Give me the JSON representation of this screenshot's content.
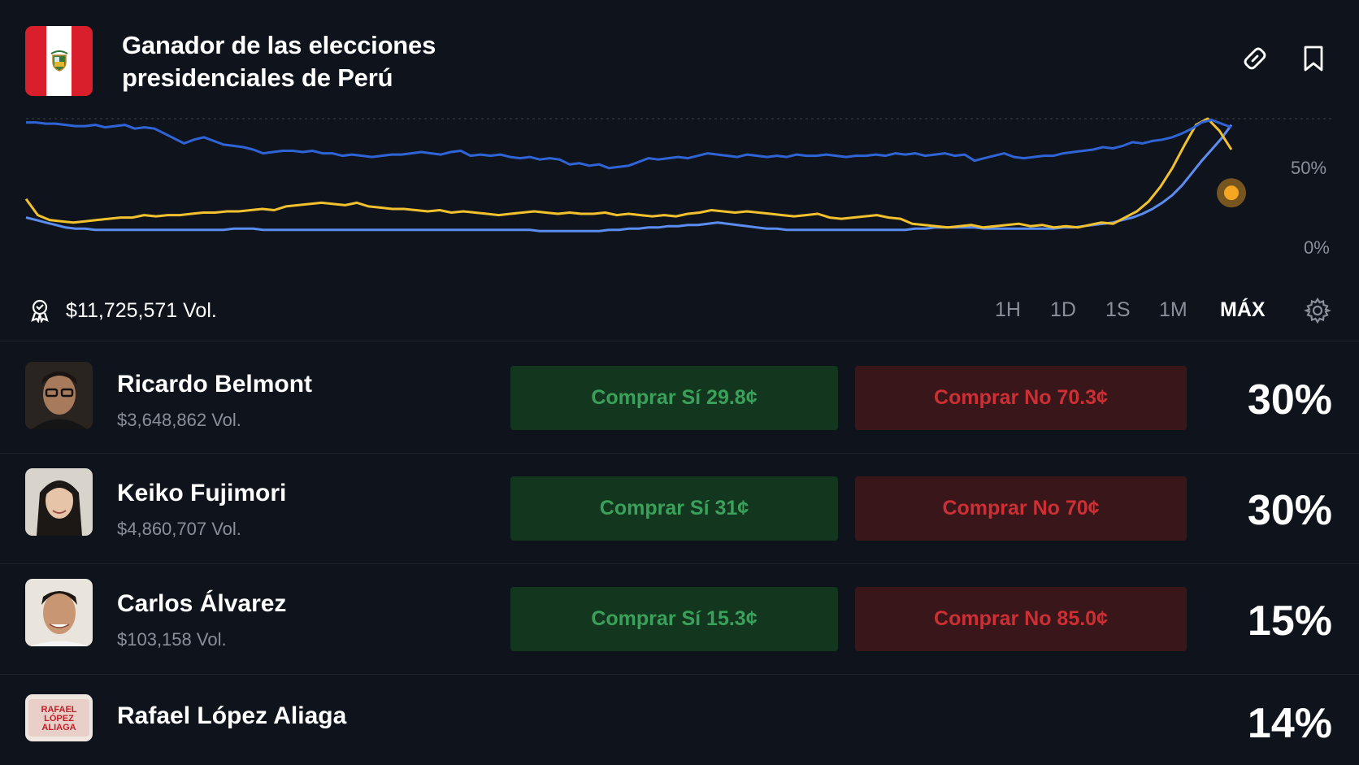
{
  "header": {
    "title": "Ganador de las elecciones presidenciales de Perú",
    "flag_colors": {
      "red": "#d91f2b",
      "white": "#ffffff"
    },
    "icons": [
      "link-icon",
      "bookmark-icon"
    ]
  },
  "chart_data": {
    "type": "line",
    "ylim": [
      0,
      100
    ],
    "yticks": [
      "50%",
      "0%"
    ],
    "grid": "dashed line at top",
    "series": [
      {
        "color": "#2f64d6",
        "values": [
          97,
          97,
          96,
          96,
          95,
          94,
          94,
          95,
          93,
          94,
          95,
          92,
          93,
          92,
          88,
          84,
          80,
          83,
          85,
          82,
          79,
          78,
          77,
          75,
          72,
          73,
          74,
          74,
          73,
          74,
          72,
          72,
          70,
          71,
          70,
          69,
          70,
          71,
          71,
          72,
          73,
          72,
          71,
          73,
          74,
          70,
          71,
          70,
          71,
          69,
          68,
          69,
          67,
          68,
          67,
          63,
          64,
          62,
          63,
          60,
          61,
          62,
          65,
          68,
          67,
          68,
          69,
          68,
          70,
          72,
          71,
          70,
          69,
          71,
          70,
          69,
          70,
          69,
          71,
          70,
          70,
          71,
          70,
          69,
          70,
          70,
          71,
          70,
          72,
          71,
          72,
          70,
          71,
          72,
          70,
          71,
          66,
          68,
          70,
          72,
          69,
          68,
          69,
          70,
          70,
          72,
          73,
          74,
          75,
          77,
          76,
          78,
          81,
          80,
          82,
          83,
          85,
          88,
          92,
          97,
          99,
          96,
          93
        ]
      },
      {
        "color": "#f2c12e",
        "values": [
          35,
          22,
          18,
          17,
          16,
          17,
          18,
          19,
          20,
          20,
          22,
          21,
          22,
          22,
          23,
          24,
          24,
          25,
          25,
          26,
          27,
          26,
          29,
          30,
          31,
          32,
          31,
          30,
          32,
          29,
          28,
          27,
          27,
          26,
          25,
          26,
          24,
          25,
          24,
          23,
          22,
          23,
          24,
          25,
          24,
          23,
          24,
          23,
          23,
          24,
          22,
          23,
          22,
          21,
          22,
          21,
          23,
          24,
          26,
          25,
          24,
          25,
          24,
          23,
          22,
          21,
          22,
          23,
          20,
          19,
          20,
          21,
          22,
          20,
          19,
          15,
          14,
          13,
          12,
          13,
          14,
          12,
          13,
          14,
          15,
          13,
          14,
          12,
          13,
          12,
          14,
          16,
          15,
          20,
          25,
          33,
          45,
          60,
          78,
          95,
          100,
          90,
          75
        ]
      },
      {
        "color": "#5b8df0",
        "values": [
          20,
          18,
          16,
          14,
          12,
          11,
          11,
          10,
          10,
          10,
          10,
          10,
          10,
          10,
          10,
          10,
          10,
          10,
          10,
          10,
          10,
          11,
          11,
          11,
          10,
          10,
          10,
          10,
          10,
          10,
          10,
          10,
          10,
          10,
          10,
          10,
          10,
          10,
          10,
          10,
          10,
          10,
          10,
          10,
          10,
          10,
          10,
          10,
          10,
          10,
          10,
          10,
          9,
          9,
          9,
          9,
          9,
          9,
          9,
          10,
          10,
          11,
          11,
          12,
          12,
          13,
          13,
          14,
          14,
          15,
          16,
          15,
          14,
          13,
          12,
          11,
          11,
          10,
          10,
          10,
          10,
          10,
          10,
          10,
          10,
          10,
          10,
          10,
          10,
          10,
          11,
          11,
          12,
          12,
          12,
          12,
          12,
          11,
          11,
          11,
          11,
          11,
          11,
          11,
          11,
          12,
          12,
          13,
          14,
          15,
          16,
          18,
          20,
          23,
          27,
          32,
          38,
          46,
          56,
          66,
          75,
          84,
          95
        ]
      }
    ],
    "marker": {
      "series": 0,
      "position": "end",
      "color": "#f5a623"
    }
  },
  "volume_bar": {
    "total_volume": "$11,725,571 Vol.",
    "ranges": [
      "1H",
      "1D",
      "1S",
      "1M",
      "MÁX"
    ],
    "active_range": "MÁX"
  },
  "candidates": [
    {
      "name": "Ricardo Belmont",
      "volume": "$3,648,862 Vol.",
      "buy_yes": "Comprar Sí 29.8¢",
      "buy_no": "Comprar No 70.3¢",
      "percent": "30%"
    },
    {
      "name": "Keiko Fujimori",
      "volume": "$4,860,707 Vol.",
      "buy_yes": "Comprar Sí 31¢",
      "buy_no": "Comprar No 70¢",
      "percent": "30%"
    },
    {
      "name": "Carlos Álvarez",
      "volume": "$103,158 Vol.",
      "buy_yes": "Comprar Sí 15.3¢",
      "buy_no": "Comprar No 85.0¢",
      "percent": "15%"
    },
    {
      "name": "Rafael López Aliaga",
      "percent": "14%",
      "avatar_text": "RAFAEL LÓPEZ ALIAGA"
    }
  ],
  "colors": {
    "background": "#0f131c",
    "yes_bg": "#13361f",
    "yes_text": "#3aa15a",
    "no_bg": "#381619",
    "no_text": "#cc2f34",
    "muted_text": "#8a8f9a"
  }
}
